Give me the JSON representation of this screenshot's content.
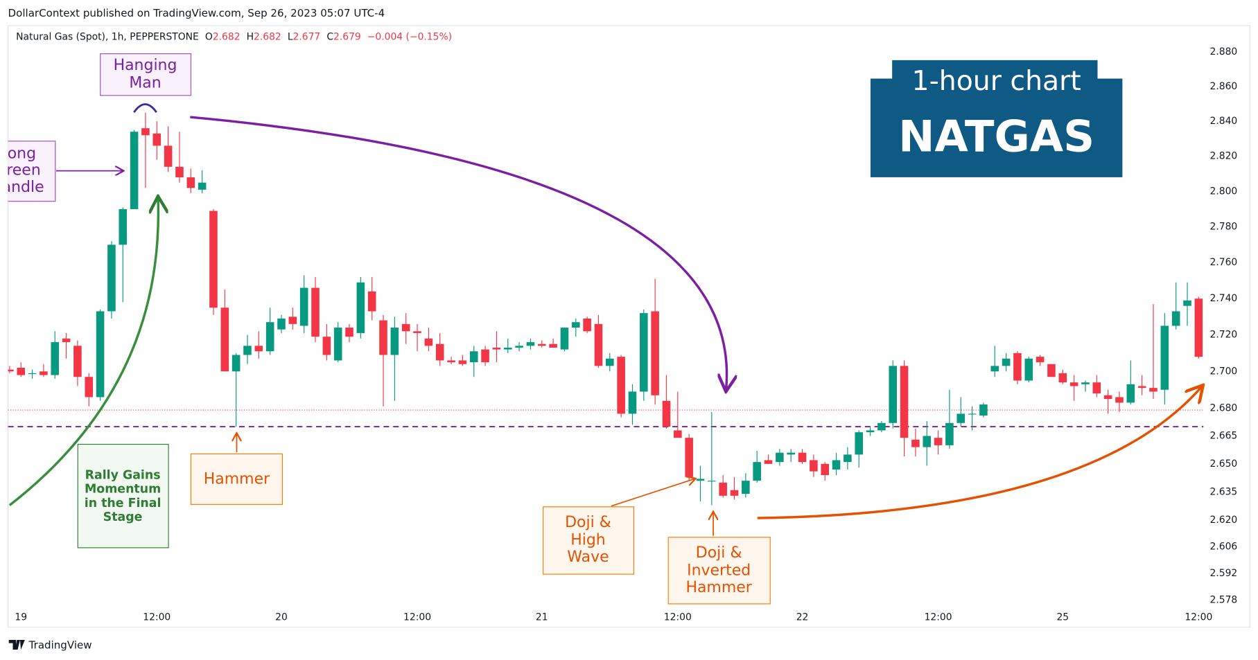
{
  "header": {
    "publisher": "DollarContext published on TradingView.com, Sep 26, 2023 05:07 UTC-4",
    "symbol": "Natural Gas (Spot), 1h, PEPPERSTONE",
    "ohlc": [
      {
        "label": "O",
        "value": "2.682"
      },
      {
        "label": "H",
        "value": "2.682"
      },
      {
        "label": "L",
        "value": "2.677"
      },
      {
        "label": "C",
        "value": "2.679"
      }
    ],
    "change": "−0.004 (−0.15%)"
  },
  "footer": "TradingView",
  "badge": {
    "line1": "1-hour chart",
    "line2": "NATGAS"
  },
  "annotations": {
    "hanging_man": [
      "Hanging",
      "Man"
    ],
    "long_green_candle": [
      "Long",
      "Green",
      "Candle"
    ],
    "rally": [
      "Rally Gains",
      "Momentum",
      "in the Final",
      "Stage"
    ],
    "hammer": [
      "Hammer"
    ],
    "doji_high_wave": [
      "Doji &",
      "High",
      "Wave"
    ],
    "doji_inverted_hammer": [
      "Doji &",
      "Inverted",
      "Hammer"
    ]
  },
  "chart_data": {
    "type": "candlestick",
    "log_scale": true,
    "grid": false,
    "up_color": "#089981",
    "down_color": "#f23645",
    "categories": [
      null,
      "19",
      null,
      null,
      null,
      null,
      null,
      null,
      null,
      null,
      null,
      null,
      null,
      "12:00",
      null,
      null,
      null,
      null,
      null,
      null,
      null,
      null,
      null,
      null,
      "20",
      null,
      null,
      null,
      null,
      null,
      null,
      null,
      null,
      null,
      null,
      null,
      "12:00",
      null,
      null,
      null,
      null,
      null,
      null,
      null,
      null,
      null,
      null,
      "21",
      null,
      null,
      null,
      null,
      null,
      null,
      null,
      null,
      null,
      null,
      null,
      "12:00",
      null,
      null,
      null,
      null,
      null,
      null,
      null,
      null,
      null,
      null,
      "22",
      null,
      null,
      null,
      null,
      null,
      null,
      null,
      null,
      null,
      null,
      null,
      "12:00",
      null,
      null,
      null,
      null,
      null,
      null,
      null,
      null,
      null,
      null,
      "25",
      null,
      null,
      null,
      null,
      null,
      null,
      null,
      null,
      null,
      null,
      null,
      "12:00"
    ],
    "open": [
      2.701,
      2.702,
      2.699,
      2.7,
      2.698,
      2.718,
      2.714,
      2.697,
      2.686,
      2.733,
      2.77,
      2.79,
      2.836,
      2.833,
      2.826,
      2.814,
      2.808,
      2.801,
      2.789,
      2.735,
      2.7,
      2.709,
      2.714,
      2.711,
      2.723,
      2.73,
      2.725,
      2.746,
      2.719,
      2.706,
      2.724,
      2.721,
      2.744,
      2.728,
      2.709,
      2.726,
      2.722,
      2.718,
      2.715,
      2.706,
      2.706,
      2.705,
      2.712,
      2.713,
      2.712,
      2.713,
      2.714,
      2.715,
      2.715,
      2.712,
      2.724,
      2.729,
      2.726,
      2.703,
      2.708,
      2.677,
      2.689,
      2.733,
      2.684,
      2.668,
      2.664,
      2.641,
      2.641,
      2.64,
      2.636,
      2.634,
      2.641,
      2.652,
      2.651,
      2.655,
      2.656,
      2.652,
      2.65,
      2.647,
      2.651,
      2.655,
      2.667,
      2.668,
      2.672,
      2.703,
      2.663,
      2.659,
      2.664,
      2.66,
      2.672,
      2.677,
      2.676,
      2.7,
      2.703,
      2.71,
      2.695,
      2.708,
      2.704,
      2.699,
      2.694,
      2.693,
      2.694,
      2.687,
      2.686,
      2.683,
      2.692,
      2.691,
      2.69,
      2.725,
      2.736,
      2.74
    ],
    "high": [
      2.703,
      2.705,
      2.701,
      2.704,
      2.722,
      2.721,
      2.717,
      2.699,
      2.734,
      2.772,
      2.791,
      2.835,
      2.845,
      2.84,
      2.837,
      2.834,
      2.813,
      2.812,
      2.79,
      2.745,
      2.71,
      2.72,
      2.722,
      2.735,
      2.731,
      2.735,
      2.753,
      2.752,
      2.726,
      2.727,
      2.726,
      2.752,
      2.752,
      2.731,
      2.73,
      2.732,
      2.726,
      2.724,
      2.721,
      2.708,
      2.709,
      2.714,
      2.714,
      2.722,
      2.718,
      2.716,
      2.718,
      2.717,
      2.718,
      2.724,
      2.729,
      2.73,
      2.731,
      2.71,
      2.709,
      2.693,
      2.734,
      2.751,
      2.698,
      2.689,
      2.666,
      2.649,
      2.678,
      2.644,
      2.643,
      2.645,
      2.657,
      2.655,
      2.658,
      2.658,
      2.658,
      2.655,
      2.651,
      2.656,
      2.659,
      2.668,
      2.67,
      2.673,
      2.706,
      2.706,
      2.669,
      2.673,
      2.668,
      2.69,
      2.686,
      2.681,
      2.683,
      2.714,
      2.71,
      2.711,
      2.708,
      2.709,
      2.704,
      2.701,
      2.698,
      2.695,
      2.698,
      2.69,
      2.689,
      2.706,
      2.698,
      2.737,
      2.732,
      2.749,
      2.749,
      2.741
    ],
    "low": [
      2.699,
      2.697,
      2.696,
      2.697,
      2.696,
      2.707,
      2.692,
      2.681,
      2.684,
      2.729,
      2.738,
      2.79,
      2.802,
      2.818,
      2.811,
      2.805,
      2.799,
      2.799,
      2.731,
      2.7,
      2.67,
      2.704,
      2.707,
      2.709,
      2.721,
      2.723,
      2.721,
      2.716,
      2.706,
      2.705,
      2.716,
      2.718,
      2.728,
      2.681,
      2.684,
      2.715,
      2.711,
      2.711,
      2.703,
      2.704,
      2.703,
      2.697,
      2.703,
      2.705,
      2.71,
      2.711,
      2.712,
      2.713,
      2.713,
      2.711,
      2.719,
      2.721,
      2.702,
      2.7,
      2.675,
      2.671,
      2.684,
      2.682,
      2.669,
      2.664,
      2.641,
      2.63,
      2.628,
      2.632,
      2.631,
      2.632,
      2.64,
      2.65,
      2.649,
      2.651,
      2.65,
      2.643,
      2.641,
      2.644,
      2.647,
      2.648,
      2.665,
      2.667,
      2.669,
      2.654,
      2.654,
      2.649,
      2.655,
      2.658,
      2.67,
      2.668,
      2.675,
      2.697,
      2.7,
      2.693,
      2.694,
      2.703,
      2.697,
      2.693,
      2.684,
      2.689,
      2.686,
      2.677,
      2.678,
      2.682,
      2.687,
      2.685,
      2.682,
      2.723,
      2.725,
      2.707
    ],
    "close": [
      2.7,
      2.698,
      2.699,
      2.698,
      2.716,
      2.716,
      2.697,
      2.686,
      2.733,
      2.77,
      2.79,
      2.834,
      2.832,
      2.826,
      2.814,
      2.808,
      2.802,
      2.805,
      2.735,
      2.7,
      2.709,
      2.714,
      2.711,
      2.727,
      2.729,
      2.726,
      2.746,
      2.719,
      2.709,
      2.724,
      2.719,
      2.749,
      2.733,
      2.709,
      2.724,
      2.722,
      2.721,
      2.714,
      2.706,
      2.705,
      2.704,
      2.711,
      2.705,
      2.712,
      2.713,
      2.714,
      2.716,
      2.714,
      2.713,
      2.724,
      2.727,
      2.722,
      2.703,
      2.707,
      2.677,
      2.689,
      2.732,
      2.687,
      2.67,
      2.664,
      2.643,
      2.642,
      2.641,
      2.633,
      2.633,
      2.641,
      2.651,
      2.65,
      2.656,
      2.656,
      2.651,
      2.646,
      2.644,
      2.652,
      2.655,
      2.667,
      2.668,
      2.672,
      2.703,
      2.664,
      2.659,
      2.665,
      2.66,
      2.672,
      2.677,
      2.677,
      2.682,
      2.703,
      2.707,
      2.695,
      2.707,
      2.705,
      2.697,
      2.694,
      2.692,
      2.694,
      2.688,
      2.685,
      2.683,
      2.693,
      2.691,
      2.689,
      2.725,
      2.733,
      2.739,
      2.708
    ],
    "ylim": [
      2.574,
      2.894
    ],
    "yticks": [
      {
        "value": 2.88,
        "label": "2.880"
      },
      {
        "value": 2.86,
        "label": "2.860"
      },
      {
        "value": 2.84,
        "label": "2.840"
      },
      {
        "value": 2.82,
        "label": "2.820"
      },
      {
        "value": 2.8,
        "label": "2.800"
      },
      {
        "value": 2.78,
        "label": "2.780"
      },
      {
        "value": 2.76,
        "label": "2.760"
      },
      {
        "value": 2.74,
        "label": "2.740"
      },
      {
        "value": 2.72,
        "label": "2.720"
      },
      {
        "value": 2.7,
        "label": "2.700"
      },
      {
        "value": 2.68,
        "label": "2.680"
      },
      {
        "value": 2.665,
        "label": "2.665"
      },
      {
        "value": 2.65,
        "label": "2.650"
      },
      {
        "value": 2.635,
        "label": "2.635"
      },
      {
        "value": 2.62,
        "label": "2.620"
      },
      {
        "value": 2.606,
        "label": "2.606"
      },
      {
        "value": 2.592,
        "label": "2.592"
      },
      {
        "value": 2.578,
        "label": "2.578"
      }
    ],
    "reference_lines": [
      {
        "value": 2.679,
        "color": "#f23645",
        "style": "dotted"
      },
      {
        "value": 2.67,
        "color": "#7b1fa2",
        "style": "dashed"
      }
    ]
  }
}
